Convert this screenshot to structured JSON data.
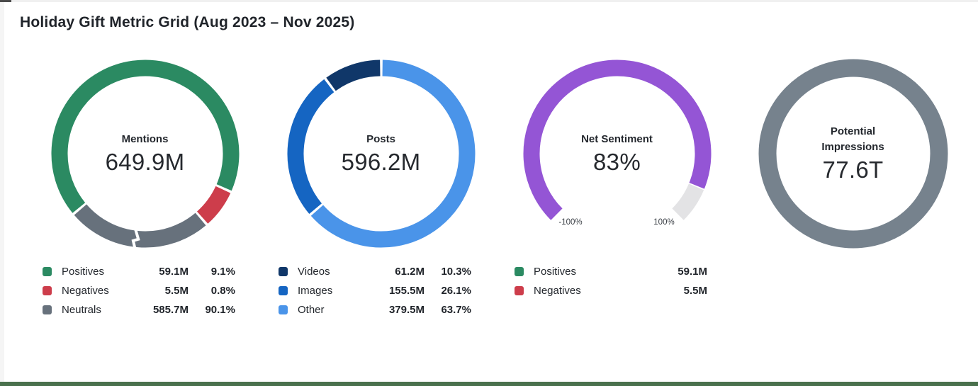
{
  "page": {
    "title": "Holiday Gift Metric Grid (Aug 2023 – Nov 2025)",
    "bottom_bar_color": "#4a714d",
    "background": "#ffffff"
  },
  "colors": {
    "positive_green": "#2b8a62",
    "negative_red": "#cd3d4b",
    "neutral_gray": "#67717c",
    "videos_navy": "#103769",
    "images_blue": "#1565c2",
    "other_light_blue": "#4a94e9",
    "sentiment_purple": "#9455d5",
    "gauge_track_gray": "#e3e3e5",
    "impressions_slate": "#76828d"
  },
  "charts": [
    {
      "id": "mentions",
      "type": "donut",
      "center_label": "Mentions",
      "center_value": "649.9M",
      "break_marker_angle": 187,
      "segments": [
        {
          "name": "Positives",
          "color": "#2b8a62",
          "start": 230,
          "sweep": 244
        },
        {
          "name": "Negatives",
          "color": "#cd3d4b",
          "start": 114,
          "sweep": 25
        },
        {
          "name": "Neutrals",
          "color": "#67717c",
          "start": 139,
          "sweep": 91
        }
      ],
      "legend": [
        {
          "label": "Positives",
          "color": "#2b8a62",
          "value": "59.1M",
          "pct": "9.1%"
        },
        {
          "label": "Negatives",
          "color": "#cd3d4b",
          "value": "5.5M",
          "pct": "0.8%"
        },
        {
          "label": "Neutrals",
          "color": "#67717c",
          "value": "585.7M",
          "pct": "90.1%"
        }
      ]
    },
    {
      "id": "posts",
      "type": "donut",
      "center_label": "Posts",
      "center_value": "596.2M",
      "segments": [
        {
          "name": "Other",
          "color": "#4a94e9",
          "start": 0,
          "sweep": 229.3
        },
        {
          "name": "Images",
          "color": "#1565c2",
          "start": 229.3,
          "sweep": 94
        },
        {
          "name": "Videos",
          "color": "#103769",
          "start": 323.3,
          "sweep": 36.7
        }
      ],
      "legend": [
        {
          "label": "Videos",
          "color": "#103769",
          "value": "61.2M",
          "pct": "10.3%"
        },
        {
          "label": "Images",
          "color": "#1565c2",
          "value": "155.5M",
          "pct": "26.1%"
        },
        {
          "label": "Other",
          "color": "#4a94e9",
          "value": "379.5M",
          "pct": "63.7%"
        }
      ]
    },
    {
      "id": "net-sentiment",
      "type": "gauge",
      "center_label": "Net Sentiment",
      "center_value": "83%",
      "gauge": {
        "start": 225,
        "total_sweep": 270,
        "value_sweep": 247,
        "fill_color": "#9455d5",
        "track_color": "#e3e3e5",
        "min_label": "-100%",
        "max_label": "100%"
      },
      "legend": [
        {
          "label": "Positives",
          "color": "#2b8a62",
          "value": "59.1M",
          "pct": null
        },
        {
          "label": "Negatives",
          "color": "#cd3d4b",
          "value": "5.5M",
          "pct": null
        }
      ]
    },
    {
      "id": "potential-impressions",
      "type": "ring",
      "center_label": "Potential Impressions",
      "center_value": "77.6T",
      "ring_color": "#76828d",
      "legend": []
    }
  ],
  "chart_data": [
    {
      "type": "pie",
      "title": "Mentions",
      "total": "649.9M",
      "categories": [
        "Positives",
        "Negatives",
        "Neutrals"
      ],
      "values_abs": [
        "59.1M",
        "5.5M",
        "585.7M"
      ],
      "values_pct": [
        9.1,
        0.8,
        90.1
      ],
      "note": "donut with broken-scale marker; arc lengths not proportional to pct",
      "legend_position": "bottom-left"
    },
    {
      "type": "pie",
      "title": "Posts",
      "total": "596.2M",
      "categories": [
        "Videos",
        "Images",
        "Other"
      ],
      "values_abs": [
        "61.2M",
        "155.5M",
        "379.5M"
      ],
      "values_pct": [
        10.3,
        26.1,
        63.7
      ],
      "legend_position": "bottom-left"
    },
    {
      "type": "pie",
      "title": "Net Sentiment",
      "subtype": "gauge",
      "value": 83,
      "unit": "%",
      "axis_range": [
        -100,
        100
      ],
      "axis_labels": [
        "-100%",
        "100%"
      ],
      "categories": [
        "Positives",
        "Negatives"
      ],
      "values_abs": [
        "59.1M",
        "5.5M"
      ],
      "legend_position": "bottom-left"
    },
    {
      "type": "pie",
      "title": "Potential Impressions",
      "total": "77.6T",
      "categories": [
        "Potential Impressions"
      ],
      "values_pct": [
        100
      ]
    }
  ]
}
